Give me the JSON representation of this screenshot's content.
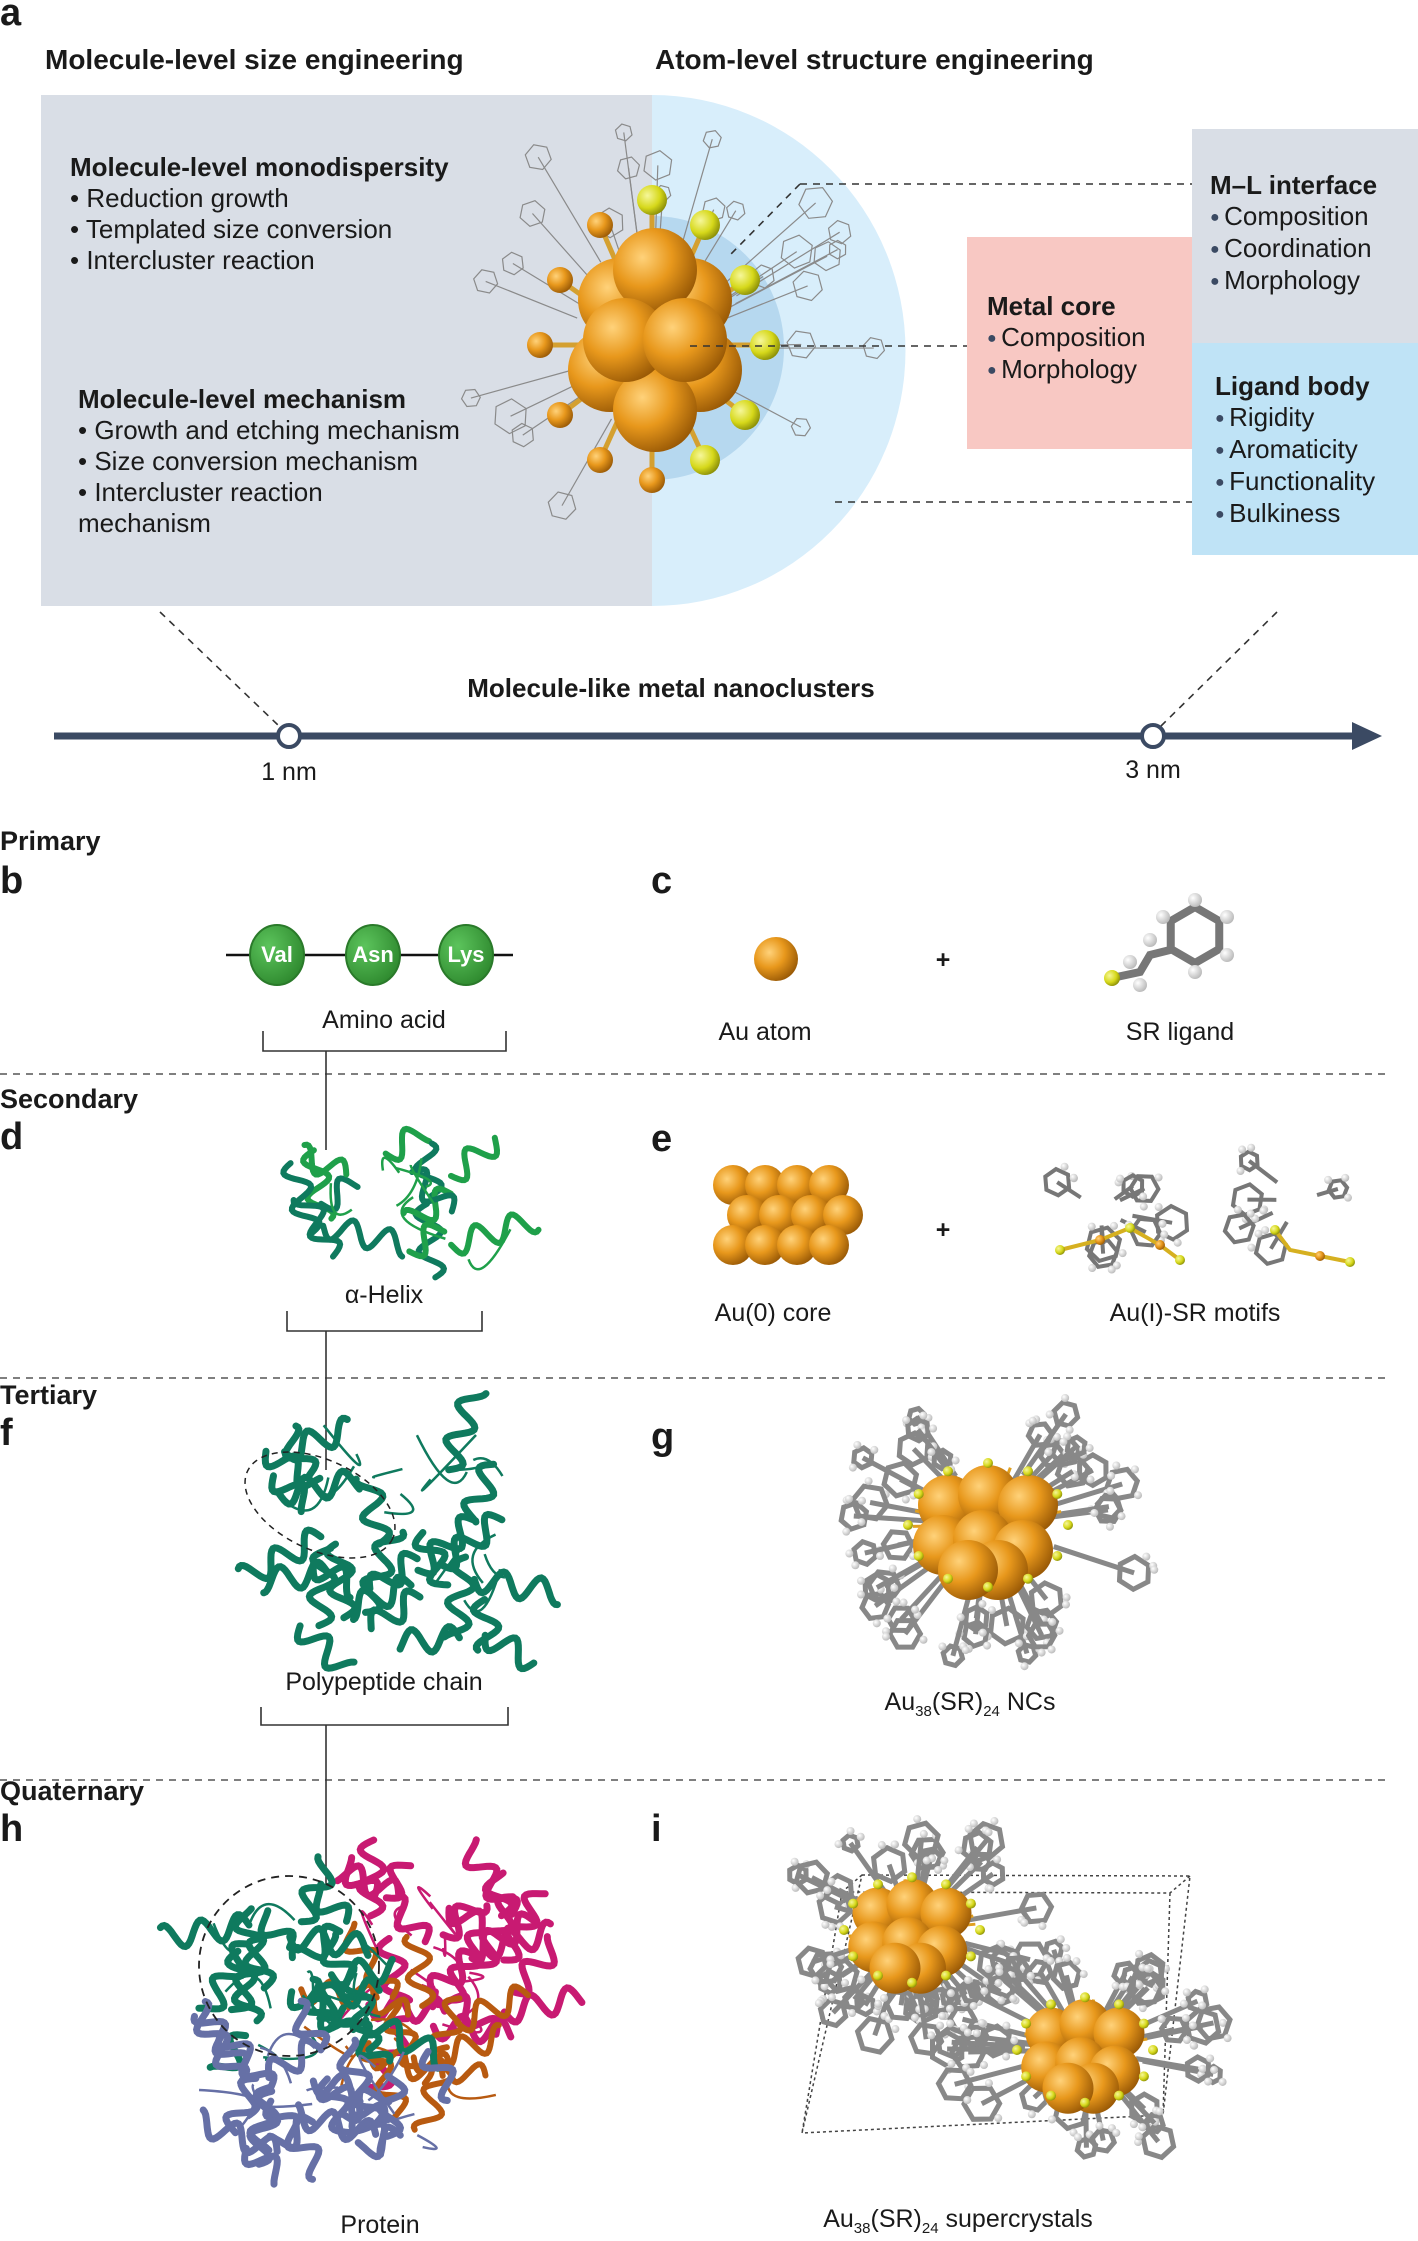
{
  "panel_a": {
    "letter": "a",
    "left_title": "Molecule-level size engineering",
    "right_title": "Atom-level structure engineering",
    "monodispersity": {
      "heading": "Molecule-level monodispersity",
      "items": [
        "Reduction growth",
        "Templated size conversion",
        "Intercluster reaction"
      ]
    },
    "mechanism": {
      "heading": "Molecule-level mechanism",
      "items": [
        "Growth and etching mechanism",
        "Size conversion mechanism",
        "Intercluster reaction",
        "mechanism"
      ]
    },
    "metal_core": {
      "heading": "Metal core",
      "items": [
        "Composition",
        "Morphology"
      ]
    },
    "ml_interface": {
      "heading": "M–L interface",
      "items": [
        "Composition",
        "Coordination",
        "Morphology"
      ]
    },
    "ligand_body": {
      "heading": "Ligand body",
      "items": [
        "Rigidity",
        "Aromaticity",
        "Functionality",
        "Bulkiness"
      ]
    },
    "scale_title": "Molecule-like metal nanoclusters",
    "scale_ticks": [
      "1 nm",
      "3 nm"
    ],
    "colors": {
      "gray_box": "#d9dee6",
      "blue_zone": "#d8eefb",
      "inner_blue": "#b6d8ef",
      "pink_box": "#f8c8c3",
      "ml_box": "#d9dee6",
      "ligand_box": "#bfe3f6",
      "axis": "#3b4a63",
      "gold": "#e49a1e",
      "sulfur": "#d9dd1c"
    }
  },
  "levels": {
    "primary": "Primary",
    "secondary": "Secondary",
    "tertiary": "Tertiary",
    "quaternary": "Quaternary"
  },
  "panels": {
    "b": {
      "letter": "b",
      "residues": [
        "Val",
        "Asn",
        "Lys"
      ],
      "label": "Amino acid",
      "residue_color": "#3a9a3a"
    },
    "c": {
      "letter": "c",
      "atom_label": "Au atom",
      "plus": "+",
      "ligand_label": "SR ligand"
    },
    "d": {
      "letter": "d",
      "label": "α-Helix"
    },
    "e": {
      "letter": "e",
      "core_label": "Au(0) core",
      "plus": "+",
      "motif_label": "Au(I)-SR motifs"
    },
    "f": {
      "letter": "f",
      "label": "Polypeptide chain"
    },
    "g": {
      "letter": "g",
      "label": {
        "base": "Au",
        "sub1": "38",
        "mid": "(SR)",
        "sub2": "24",
        "tail": " NCs"
      }
    },
    "h": {
      "letter": "h",
      "label": "Protein"
    },
    "i": {
      "letter": "i",
      "label": {
        "base": "Au",
        "sub1": "38",
        "mid": "(SR)",
        "sub2": "24",
        "tail": " supercrystals"
      }
    }
  },
  "protein_colors": {
    "green": "#0f7a5e",
    "bright_green": "#1fa04a",
    "magenta": "#c81a72",
    "orange": "#b85a10",
    "slate": "#6670a6"
  }
}
